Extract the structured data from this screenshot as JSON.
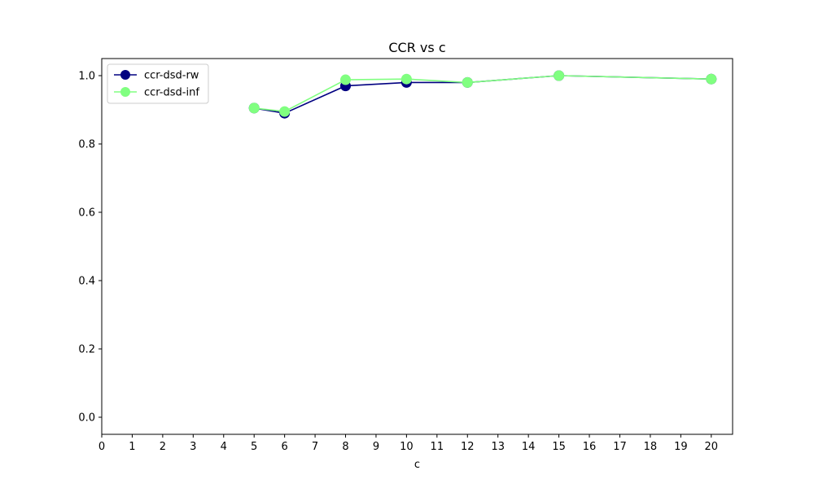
{
  "chart_data": {
    "type": "line",
    "title": "CCR vs c",
    "xlabel": "c",
    "ylabel": "",
    "xlim": [
      0,
      20.7
    ],
    "ylim": [
      -0.05,
      1.05
    ],
    "xticks": [
      "0",
      "1",
      "2",
      "3",
      "4",
      "5",
      "6",
      "7",
      "8",
      "9",
      "10",
      "11",
      "12",
      "13",
      "14",
      "15",
      "16",
      "17",
      "18",
      "19",
      "20"
    ],
    "yticks": [
      "0.0",
      "0.2",
      "0.4",
      "0.6",
      "0.8",
      "1.0"
    ],
    "grid": false,
    "legend_position": "top-left",
    "series": [
      {
        "name": "ccr-dsd-rw",
        "color": "#000080",
        "marker": "circle",
        "x": [
          5,
          6,
          8,
          10,
          12,
          15,
          20
        ],
        "y": [
          0.905,
          0.89,
          0.97,
          0.98,
          0.98,
          1.0,
          0.99
        ]
      },
      {
        "name": "ccr-dsd-inf",
        "color": "#80ff80",
        "marker": "circle",
        "x": [
          5,
          6,
          8,
          10,
          12,
          15,
          20
        ],
        "y": [
          0.905,
          0.895,
          0.988,
          0.99,
          0.98,
          1.0,
          0.99
        ]
      }
    ]
  }
}
